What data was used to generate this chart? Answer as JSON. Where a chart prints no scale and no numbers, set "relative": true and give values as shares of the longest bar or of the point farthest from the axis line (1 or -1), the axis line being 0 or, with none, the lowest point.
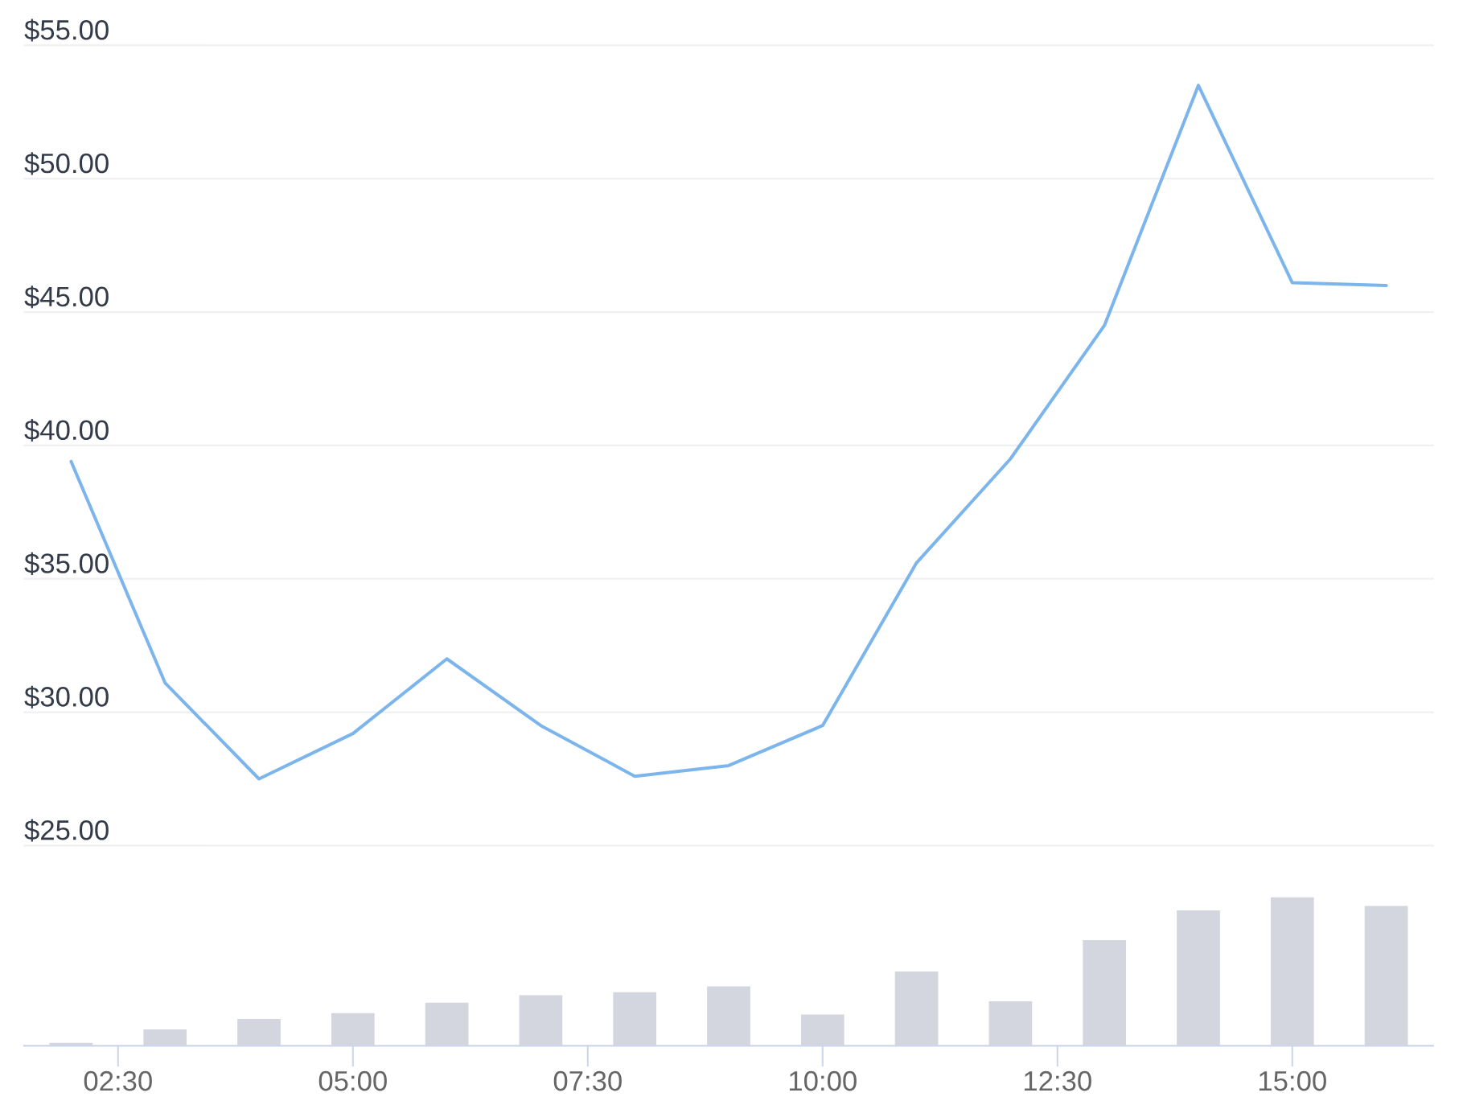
{
  "chart_data": [
    {
      "type": "line",
      "x": [
        2,
        3,
        4,
        5,
        6,
        7,
        8,
        9,
        10,
        11,
        12,
        13,
        14,
        15,
        16
      ],
      "values": [
        39.4,
        31.1,
        27.5,
        29.2,
        32.0,
        29.5,
        27.6,
        28.0,
        29.5,
        35.6,
        39.5,
        44.5,
        53.5,
        46.1,
        46.0
      ],
      "color": "#7cb5ec",
      "xlim": [
        1.5,
        16.5
      ],
      "ylim": [
        25,
        55
      ],
      "yticks": [
        {
          "value": 25,
          "label": "$25.00"
        },
        {
          "value": 30,
          "label": "$30.00"
        },
        {
          "value": 35,
          "label": "$35.00"
        },
        {
          "value": 40,
          "label": "$40.00"
        },
        {
          "value": 45,
          "label": "$45.00"
        },
        {
          "value": 50,
          "label": "$50.00"
        },
        {
          "value": 55,
          "label": "$55.00"
        }
      ],
      "grid": "y",
      "tick_labels": "y"
    },
    {
      "type": "bar",
      "x": [
        2,
        3,
        4,
        5,
        6,
        7,
        8,
        9,
        10,
        11,
        12,
        13,
        14,
        15,
        16
      ],
      "values": [
        0.02,
        0.11,
        0.18,
        0.22,
        0.29,
        0.34,
        0.36,
        0.4,
        0.21,
        0.5,
        0.3,
        0.71,
        0.91,
        1,
        0.94
      ],
      "color": "#d3d6de",
      "relative": true,
      "xlim": [
        1.5,
        16.5
      ],
      "xticks": [
        {
          "value": 2.5,
          "label": "02:30"
        },
        {
          "value": 5,
          "label": "05:00"
        },
        {
          "value": 7.5,
          "label": "07:30"
        },
        {
          "value": 10,
          "label": "10:00"
        },
        {
          "value": 12.5,
          "label": "12:30"
        },
        {
          "value": 15,
          "label": "15:00"
        }
      ],
      "tick_labels": "x"
    }
  ]
}
